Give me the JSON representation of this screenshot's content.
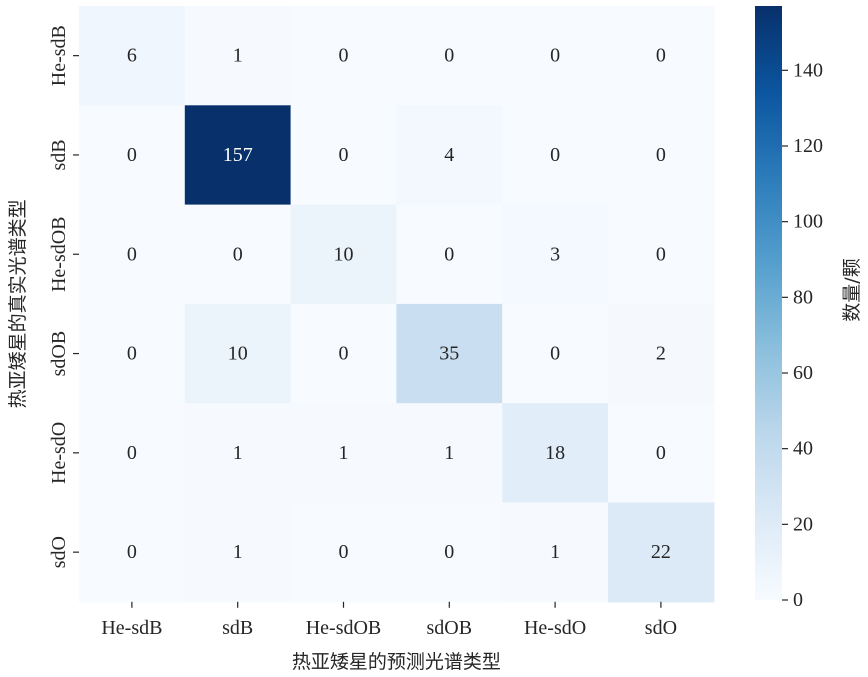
{
  "chart_data": {
    "type": "heatmap",
    "title": "",
    "xlabel": "热亚矮星的预测光谱类型",
    "ylabel": "热亚矮星的真实光谱类型",
    "x_categories": [
      "He-sdB",
      "sdB",
      "He-sdOB",
      "sdOB",
      "He-sdO",
      "sdO"
    ],
    "y_categories": [
      "He-sdB",
      "sdB",
      "He-sdOB",
      "sdOB",
      "He-sdO",
      "sdO"
    ],
    "values": [
      [
        6,
        1,
        0,
        0,
        0,
        0
      ],
      [
        0,
        157,
        0,
        4,
        0,
        0
      ],
      [
        0,
        0,
        10,
        0,
        3,
        0
      ],
      [
        0,
        10,
        0,
        35,
        0,
        2
      ],
      [
        0,
        1,
        1,
        1,
        18,
        0
      ],
      [
        0,
        1,
        0,
        0,
        1,
        22
      ]
    ],
    "colorbar": {
      "label": "数量/颗",
      "range": [
        0,
        157
      ],
      "ticks": [
        "0",
        "20",
        "40",
        "60",
        "80",
        "100",
        "120",
        "140"
      ],
      "tick_values": [
        0,
        20,
        40,
        60,
        80,
        100,
        120,
        140
      ],
      "colormap": "Blues",
      "color_stops": [
        "#f7fbff",
        "#dbe9f6",
        "#bad6eb",
        "#89bedc",
        "#539ecd",
        "#2b7bba",
        "#0b559f",
        "#08306b"
      ]
    },
    "text_color_dark": "#262626",
    "text_color_light": "#ffffff"
  }
}
